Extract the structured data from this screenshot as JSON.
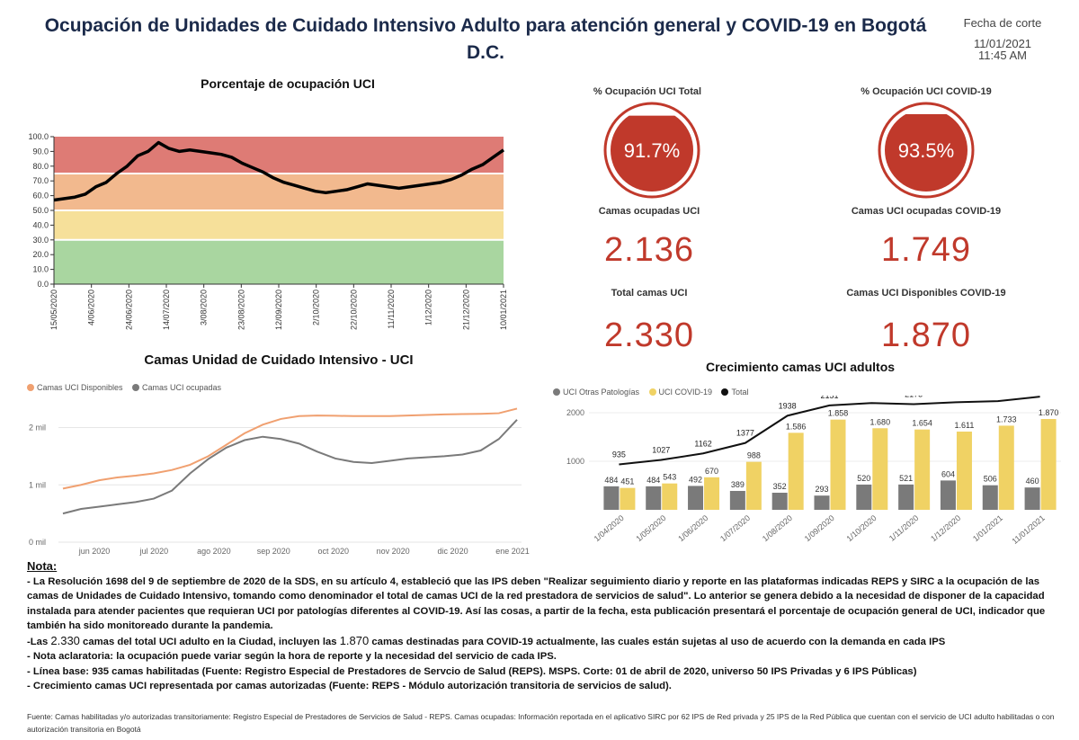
{
  "title": "Ocupación de Unidades de Cuidado Intensivo Adulto para atención general y COVID-19 en Bogotá D.C.",
  "cut": {
    "label": "Fecha de corte",
    "date": "11/01/2021",
    "time": "11:45 AM"
  },
  "kpis": {
    "occ_total": {
      "label": "% Ocupación UCI Total",
      "value": "91.7%",
      "fraction": 0.917
    },
    "occ_covid": {
      "label": "% Ocupación UCI COVID-19",
      "value": "93.5%",
      "fraction": 0.935
    },
    "beds_occupied": {
      "label": "Camas ocupadas UCI",
      "value": "2.136"
    },
    "beds_covid_occupied": {
      "label": "Camas UCI ocupadas COVID-19",
      "value": "1.749"
    },
    "beds_total": {
      "label": "Total camas UCI",
      "value": "2.330"
    },
    "beds_covid_available": {
      "label": "Camas UCI Disponibles COVID-19",
      "value": "1.870"
    }
  },
  "colors": {
    "red": "#c0392b",
    "band_red": "#de7b75",
    "band_orange": "#f2b98e",
    "band_yellow": "#f6e09a",
    "band_green": "#a9d6a0",
    "orange_line": "#f0a070",
    "gray": "#7a7a7a",
    "yellow_bar": "#f0d264"
  },
  "chart_data": [
    {
      "type": "line",
      "title": "Porcentaje de ocupación UCI",
      "ylim": [
        0,
        100
      ],
      "y_ticks": [
        "0.0",
        "10.0",
        "20.0",
        "30.0",
        "40.0",
        "50.0",
        "60.0",
        "70.0",
        "80.0",
        "90.0",
        "100.0"
      ],
      "x_labels": [
        "15/05/2020",
        "4/06/2020",
        "24/06/2020",
        "14/07/2020",
        "3/08/2020",
        "23/08/2020",
        "12/09/2020",
        "2/10/2020",
        "22/10/2020",
        "11/11/2020",
        "1/12/2020",
        "21/12/2020",
        "10/01/2021"
      ],
      "bands": [
        {
          "from": 0,
          "to": 30,
          "color": "green"
        },
        {
          "from": 30,
          "to": 50,
          "color": "yellow"
        },
        {
          "from": 50,
          "to": 75,
          "color": "orange"
        },
        {
          "from": 75,
          "to": 100,
          "color": "red"
        }
      ],
      "series": [
        {
          "name": "% ocupación",
          "values": [
            57,
            58,
            59,
            61,
            66,
            69,
            75,
            80,
            87,
            90,
            96,
            92,
            90,
            91,
            90,
            89,
            88,
            86,
            82,
            79,
            76,
            72,
            69,
            67,
            65,
            63,
            62,
            63,
            64,
            66,
            68,
            67,
            66,
            65,
            66,
            67,
            68,
            69,
            71,
            74,
            78,
            81,
            86,
            91
          ]
        }
      ]
    },
    {
      "type": "line",
      "title": "Camas Unidad de Cuidado Intensivo - UCI",
      "legend": [
        "Camas UCI Disponibles",
        "Camas UCI ocupadas"
      ],
      "y_ticks": [
        "0 mil",
        "1 mil",
        "2 mil"
      ],
      "ylim": [
        0,
        2400
      ],
      "x_labels": [
        "jun 2020",
        "jul 2020",
        "ago 2020",
        "sep 2020",
        "oct 2020",
        "nov 2020",
        "dic 2020",
        "ene 2021"
      ],
      "series": [
        {
          "name": "Camas UCI Disponibles",
          "values": [
            935,
            1000,
            1080,
            1130,
            1160,
            1200,
            1260,
            1350,
            1500,
            1700,
            1900,
            2050,
            2150,
            2200,
            2210,
            2205,
            2200,
            2200,
            2200,
            2210,
            2220,
            2230,
            2235,
            2240,
            2250,
            2330
          ]
        },
        {
          "name": "Camas UCI ocupadas",
          "values": [
            500,
            580,
            620,
            660,
            700,
            760,
            900,
            1200,
            1450,
            1650,
            1780,
            1840,
            1800,
            1720,
            1580,
            1460,
            1400,
            1380,
            1420,
            1460,
            1480,
            1500,
            1530,
            1600,
            1800,
            2136
          ]
        }
      ]
    },
    {
      "type": "bar",
      "title": "Crecimiento camas UCI adultos",
      "legend": [
        "UCI Otras Patologías",
        "UCI COVID-19",
        "Total"
      ],
      "categories": [
        "1/04/2020",
        "1/05/2020",
        "1/06/2020",
        "1/07/2020",
        "1/08/2020",
        "1/09/2020",
        "1/10/2020",
        "1/11/2020",
        "1/12/2020",
        "1/01/2021",
        "11/01/2021"
      ],
      "y_ticks": [
        "1000",
        "2000"
      ],
      "ylim": [
        0,
        2400
      ],
      "series": [
        {
          "name": "UCI Otras Patologías",
          "values": [
            484,
            484,
            492,
            389,
            352,
            293,
            520,
            521,
            604,
            506,
            460
          ],
          "labels": [
            "484",
            "484",
            "492",
            "389",
            "352",
            "293",
            "520",
            "521",
            "604",
            "506",
            "460"
          ]
        },
        {
          "name": "UCI COVID-19",
          "values": [
            451,
            543,
            670,
            988,
            1586,
            1858,
            1680,
            1654,
            1611,
            1733,
            1870
          ],
          "labels": [
            "451",
            "543",
            "670",
            "988",
            "1.586",
            "1.858",
            "1.680",
            "1.654",
            "1.611",
            "1.733",
            "1.870"
          ]
        },
        {
          "name": "Total",
          "values": [
            935,
            1027,
            1162,
            1377,
            1938,
            2151,
            2200,
            2175,
            2215,
            2239,
            2330
          ],
          "labels": [
            "935",
            "1027",
            "1162",
            "1377",
            "1938",
            "2151",
            "2200",
            "2175",
            "2215",
            "2239",
            "2330"
          ]
        }
      ]
    }
  ],
  "notes": {
    "title": "Nota:",
    "p1": "- La Resolución 1698 del 9 de septiembre de 2020 de la SDS, en su artículo 4, estableció que las IPS deben \"Realizar seguimiento diario y reporte en las plataformas indicadas REPS y SIRC a la ocupación de las camas de Unidades de Cuidado Intensivo, tomando como denominador el total de camas UCI de la red prestadora de servicios de salud\". Lo anterior se genera debido a la necesidad de disponer de la capacidad instalada para atender pacientes que requieran UCI por patologías diferentes al COVID-19. Así las cosas, a partir de la fecha, esta publicación presentará el porcentaje de ocupación general de UCI, indicador que también ha sido monitoreado durante la pandemia.",
    "p2_a": "-Las ",
    "p2_n1": "2.330",
    "p2_b": " camas del total UCI adulto en la Ciudad, incluyen las ",
    "p2_n2": "1.870",
    "p2_c": " camas destinadas para COVID-19 actualmente, las cuales están sujetas al uso de acuerdo con la demanda en cada IPS",
    "p3": "- Nota aclaratoria: la ocupación puede variar según la hora de reporte y la necesidad del servicio de cada IPS.",
    "p4": "- Línea base: 935 camas habilitadas (Fuente: Registro Especial de Prestadores de Servcio de Salud (REPS). MSPS. Corte: 01 de abril de 2020, universo 50 IPS Privadas y 6 IPS Públicas)",
    "p5": "- Crecimiento camas UCI representada por camas autorizadas (Fuente:  REPS - Módulo autorización transitoria de servicios de salud).",
    "source": "Fuente:  Camas habilitadas y/o autorizadas transitoriamente:  Registro Especial de Prestadores de Servicios de Salud - REPS. Camas ocupadas: Información reportada en el aplicativo SIRC por 62 IPS de Red privada y 25 IPS de la Red Pública que cuentan con el servicio de UCI adulto habilitadas o con autorización transitoria en Bogotá"
  }
}
